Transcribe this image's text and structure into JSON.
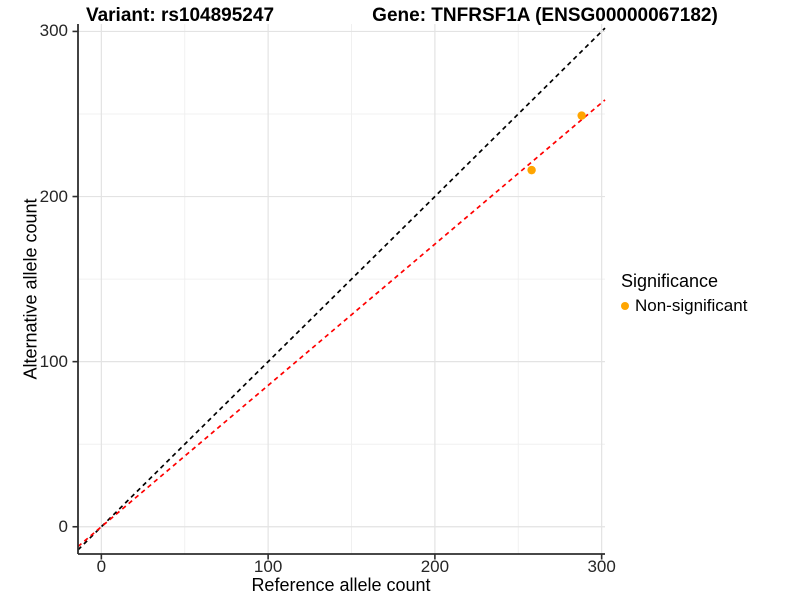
{
  "titles": {
    "variant": "Variant: rs104895247",
    "gene": "Gene: TNFRSF1A (ENSG00000067182)"
  },
  "axes": {
    "x_label": "Reference allele count",
    "y_label": "Alternative allele count"
  },
  "legend": {
    "title": "Significance",
    "items": [
      {
        "label": "Non-significant",
        "color": "#FFA500"
      }
    ]
  },
  "chart_data": {
    "type": "scatter",
    "title": "Variant: rs104895247 | Gene: TNFRSF1A (ENSG00000067182)",
    "xlabel": "Reference allele count",
    "ylabel": "Alternative allele count",
    "xlim": [
      -14,
      302
    ],
    "ylim": [
      -16.5,
      304.5
    ],
    "x_ticks": [
      0,
      100,
      200,
      300
    ],
    "y_ticks": [
      0,
      100,
      200,
      300
    ],
    "x_minor_ticks": [
      50,
      150,
      250
    ],
    "y_minor_ticks": [
      50,
      150,
      250
    ],
    "grid": true,
    "legend_position": "right",
    "series": [
      {
        "name": "Non-significant",
        "color": "#FFA500",
        "points": [
          [
            258,
            216
          ],
          [
            288,
            249
          ]
        ]
      }
    ],
    "lines": [
      {
        "name": "identity",
        "slope": 1,
        "intercept": 0,
        "color": "#000000",
        "style": "dashed"
      },
      {
        "name": "fit",
        "slope": 0.856,
        "intercept": 0,
        "color": "#FF0000",
        "style": "dashed"
      }
    ],
    "colors": {
      "grid_major": "#E3E3E3",
      "grid_minor": "#F0F0F0",
      "axis": "#2E2E2E",
      "tick_text": "#262626"
    }
  }
}
